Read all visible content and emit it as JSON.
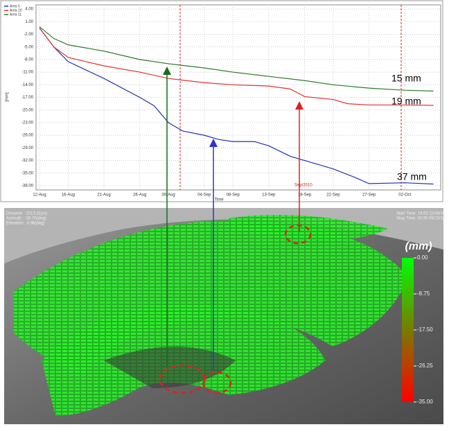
{
  "chart_data": {
    "type": "line",
    "y_label": "[mm]",
    "x_label": "Time",
    "annotations": [
      "15 mm",
      "19 mm",
      "37 mm",
      "Sep/2010"
    ],
    "xlim": [
      "12-Aug",
      "07-Oct"
    ],
    "xticks": [
      "12-Aug",
      "16-Aug",
      "21-Aug",
      "26-Aug",
      "30-Aug",
      "04-Sep",
      "08-Sep",
      "13-Sep",
      "18-Sep",
      "22-Sep",
      "27-Sep",
      "02-Oct"
    ],
    "ylim": [
      -39,
      5
    ],
    "yticks": [
      {
        "value": 4,
        "label": "4.00"
      },
      {
        "value": 1,
        "label": "1.00"
      },
      {
        "value": -2,
        "label": "-2.00"
      },
      {
        "value": -5,
        "label": "-5.00"
      },
      {
        "value": -8,
        "label": "-8.00"
      },
      {
        "value": -11,
        "label": "-11.00"
      },
      {
        "value": -14,
        "label": "-14.00"
      },
      {
        "value": -17,
        "label": "-17.00"
      },
      {
        "value": -20,
        "label": "-20.00"
      },
      {
        "value": -23,
        "label": "-23.00"
      },
      {
        "value": -26,
        "label": "-26.00"
      },
      {
        "value": -29,
        "label": "-29.00"
      },
      {
        "value": -32,
        "label": "-32.00"
      },
      {
        "value": -35,
        "label": "-35.00"
      },
      {
        "value": -38,
        "label": "-38.00"
      }
    ],
    "grid": true,
    "legend": "upper left",
    "series": [
      {
        "name": "Area 5",
        "color": "#2430b0",
        "x": [
          "12-Aug",
          "14-Aug",
          "16-Aug",
          "21-Aug",
          "26-Aug",
          "28-Aug",
          "30-Aug",
          "01-Sep",
          "04-Sep",
          "06-Sep",
          "08-Sep",
          "11-Sep",
          "13-Sep",
          "16-Sep",
          "18-Sep",
          "20-Sep",
          "22-Sep",
          "25-Sep",
          "27-Sep",
          "02-Oct",
          "06-Oct"
        ],
        "values": [
          -0.5,
          -5,
          -8.5,
          -12.5,
          -17,
          -19,
          -23,
          -25,
          -26,
          -27,
          -27.5,
          -27.5,
          -28.5,
          -31,
          -32,
          -33,
          -34,
          -36,
          -37.5,
          -37.3,
          -37.6
        ]
      },
      {
        "name": "Area 10",
        "color": "#e03030",
        "x": [
          "12-Aug",
          "14-Aug",
          "16-Aug",
          "21-Aug",
          "26-Aug",
          "30-Aug",
          "04-Sep",
          "08-Sep",
          "13-Sep",
          "16-Sep",
          "18-Sep",
          "22-Sep",
          "24-Sep",
          "27-Sep",
          "02-Oct",
          "06-Oct"
        ],
        "values": [
          -0.5,
          -5,
          -7.5,
          -9.5,
          -11,
          -12.5,
          -13.5,
          -14,
          -14.3,
          -15,
          -16.8,
          -17.5,
          -18.5,
          -18.8,
          -18.8,
          -18.9
        ]
      },
      {
        "name": "Area 11",
        "color": "#2a7a2a",
        "x": [
          "12-Aug",
          "14-Aug",
          "16-Aug",
          "21-Aug",
          "26-Aug",
          "30-Aug",
          "04-Sep",
          "08-Sep",
          "13-Sep",
          "18-Sep",
          "22-Sep",
          "27-Sep",
          "02-Oct",
          "06-Oct"
        ],
        "values": [
          -0.2,
          -3,
          -4.5,
          -6,
          -8,
          -9,
          -10,
          -11,
          -12,
          -13,
          -14,
          -14.8,
          -15.3,
          -15.5
        ]
      }
    ]
  },
  "scene": {
    "info_left": [
      "Distance : 2013.31(m)",
      "Azimuth : -26.70(deg)",
      "Elevation : 0.96(deg)"
    ],
    "info_right": [
      "Start Time: 19:03 11/08/10",
      "Stop Time: 00:35 06/10/10"
    ],
    "colorbar": {
      "title": "(mm)",
      "lim": [
        0,
        -35
      ],
      "ticks": [
        {
          "value": 0,
          "label": "0.00"
        },
        {
          "value": -8.75,
          "label": "-8.75"
        },
        {
          "value": -17.5,
          "label": "-17.50"
        },
        {
          "value": -26.25,
          "label": "-26.25"
        },
        {
          "value": -35,
          "label": "-35.00"
        }
      ]
    }
  }
}
